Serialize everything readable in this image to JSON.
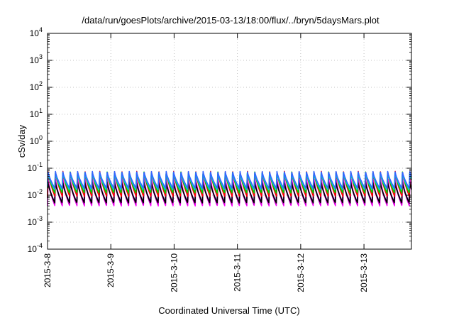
{
  "chart_data": {
    "type": "line",
    "title": "/data/run/goesPlots/archive/2015-03-13/18:00/flux/../bryn/5daysMars.plot",
    "xlabel": "Coordinated Universal Time (UTC)",
    "ylabel": "cSv/day",
    "y_scale": "log",
    "ylim": [
      0.0001,
      10000
    ],
    "y_ticks": [
      {
        "base": "10",
        "exp": "-4"
      },
      {
        "base": "10",
        "exp": "-3"
      },
      {
        "base": "10",
        "exp": "-2"
      },
      {
        "base": "10",
        "exp": "-1"
      },
      {
        "base": "10",
        "exp": "0"
      },
      {
        "base": "10",
        "exp": "1"
      },
      {
        "base": "10",
        "exp": "2"
      },
      {
        "base": "10",
        "exp": "3"
      },
      {
        "base": "10",
        "exp": "4"
      }
    ],
    "x_ticks": [
      "2015-3-8",
      "2015-3-9",
      "2015-3-10",
      "2015-3-11",
      "2015-3-12",
      "2015-3-13"
    ],
    "xlim": [
      "2015-03-08 00:00",
      "2015-03-13 18:00"
    ],
    "x_tick_rotation": "vertical",
    "grid": true,
    "legend": "none",
    "period_hours": 2.8,
    "series": [
      {
        "color": "#ff00ff",
        "peak": 0.046,
        "trough": 0.004,
        "phase_hours": 0.0
      },
      {
        "color": "#cc00cc",
        "peak": 0.04,
        "trough": 0.0045,
        "phase_hours": 0.15
      },
      {
        "color": "#6633aa",
        "peak": 0.036,
        "trough": 0.0055,
        "phase_hours": 0.1
      },
      {
        "color": "#000000",
        "peak": 0.032,
        "trough": 0.0052,
        "phase_hours": 0.05
      },
      {
        "color": "#ff0000",
        "peak": 0.08,
        "trough": 0.009,
        "phase_hours": 0.0
      },
      {
        "color": "#00cc00",
        "peak": 0.075,
        "trough": 0.012,
        "phase_hours": 0.05
      },
      {
        "color": "#00cccc",
        "peak": 0.07,
        "trough": 0.016,
        "phase_hours": 0.08
      },
      {
        "color": "#3366ff",
        "peak": 0.078,
        "trough": 0.018,
        "phase_hours": 0.02
      }
    ]
  }
}
